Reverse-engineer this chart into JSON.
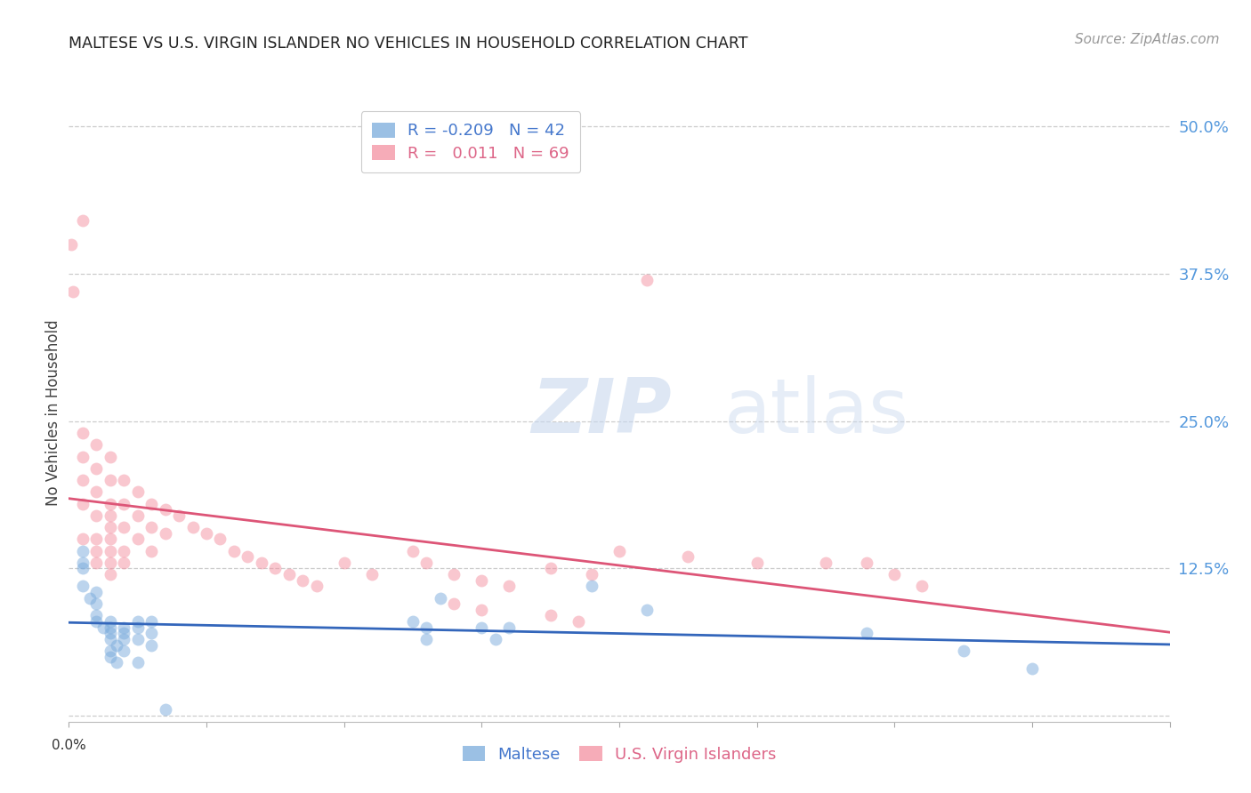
{
  "title": "MALTESE VS U.S. VIRGIN ISLANDER NO VEHICLES IN HOUSEHOLD CORRELATION CHART",
  "source": "Source: ZipAtlas.com",
  "ylabel": "No Vehicles in Household",
  "xlim": [
    0.0,
    0.08
  ],
  "ylim": [
    -0.005,
    0.52
  ],
  "ytick_vals": [
    0.0,
    0.125,
    0.25,
    0.375,
    0.5
  ],
  "xtick_vals": [
    0.0,
    0.01,
    0.02,
    0.03,
    0.04,
    0.05,
    0.06,
    0.07,
    0.08
  ],
  "watermark_line1": "ZIP",
  "watermark_line2": "atlas",
  "maltese_x": [
    0.001,
    0.001,
    0.001,
    0.001,
    0.0015,
    0.002,
    0.002,
    0.002,
    0.002,
    0.0025,
    0.003,
    0.003,
    0.003,
    0.003,
    0.0035,
    0.003,
    0.003,
    0.0035,
    0.004,
    0.004,
    0.004,
    0.004,
    0.005,
    0.005,
    0.005,
    0.005,
    0.006,
    0.006,
    0.006,
    0.007,
    0.025,
    0.026,
    0.026,
    0.027,
    0.03,
    0.031,
    0.032,
    0.038,
    0.042,
    0.058,
    0.065,
    0.07
  ],
  "maltese_y": [
    0.14,
    0.13,
    0.125,
    0.11,
    0.1,
    0.105,
    0.095,
    0.085,
    0.08,
    0.075,
    0.08,
    0.075,
    0.07,
    0.065,
    0.06,
    0.055,
    0.05,
    0.045,
    0.075,
    0.07,
    0.065,
    0.055,
    0.08,
    0.075,
    0.065,
    0.045,
    0.08,
    0.07,
    0.06,
    0.005,
    0.08,
    0.075,
    0.065,
    0.1,
    0.075,
    0.065,
    0.075,
    0.11,
    0.09,
    0.07,
    0.055,
    0.04
  ],
  "usvi_x": [
    0.0002,
    0.0003,
    0.001,
    0.001,
    0.001,
    0.001,
    0.001,
    0.001,
    0.002,
    0.002,
    0.002,
    0.002,
    0.002,
    0.002,
    0.002,
    0.003,
    0.003,
    0.003,
    0.003,
    0.003,
    0.003,
    0.003,
    0.003,
    0.003,
    0.004,
    0.004,
    0.004,
    0.004,
    0.004,
    0.005,
    0.005,
    0.005,
    0.006,
    0.006,
    0.006,
    0.007,
    0.007,
    0.008,
    0.009,
    0.01,
    0.011,
    0.012,
    0.013,
    0.014,
    0.015,
    0.016,
    0.017,
    0.018,
    0.02,
    0.022,
    0.025,
    0.026,
    0.028,
    0.03,
    0.032,
    0.035,
    0.038,
    0.04,
    0.045,
    0.05,
    0.042,
    0.055,
    0.058,
    0.06,
    0.062,
    0.028,
    0.03,
    0.035,
    0.037
  ],
  "usvi_y": [
    0.4,
    0.36,
    0.42,
    0.24,
    0.22,
    0.2,
    0.18,
    0.15,
    0.23,
    0.21,
    0.19,
    0.17,
    0.15,
    0.14,
    0.13,
    0.22,
    0.2,
    0.18,
    0.17,
    0.16,
    0.15,
    0.14,
    0.13,
    0.12,
    0.2,
    0.18,
    0.16,
    0.14,
    0.13,
    0.19,
    0.17,
    0.15,
    0.18,
    0.16,
    0.14,
    0.175,
    0.155,
    0.17,
    0.16,
    0.155,
    0.15,
    0.14,
    0.135,
    0.13,
    0.125,
    0.12,
    0.115,
    0.11,
    0.13,
    0.12,
    0.14,
    0.13,
    0.12,
    0.115,
    0.11,
    0.125,
    0.12,
    0.14,
    0.135,
    0.13,
    0.37,
    0.13,
    0.13,
    0.12,
    0.11,
    0.095,
    0.09,
    0.085,
    0.08
  ],
  "blue_dot_color": "#7aabdc",
  "pink_dot_color": "#f490a0",
  "blue_line_color": "#3366bb",
  "pink_line_color": "#dd5577",
  "grid_color": "#cccccc",
  "background_color": "#ffffff",
  "title_color": "#222222",
  "right_axis_label_color": "#5599dd",
  "bottom_label_color": "#333333",
  "source_color": "#999999",
  "ylabel_color": "#444444",
  "dot_size": 100,
  "dot_alpha": 0.5,
  "legend_r_color": "#4477cc",
  "legend_r2_color": "#dd6688"
}
